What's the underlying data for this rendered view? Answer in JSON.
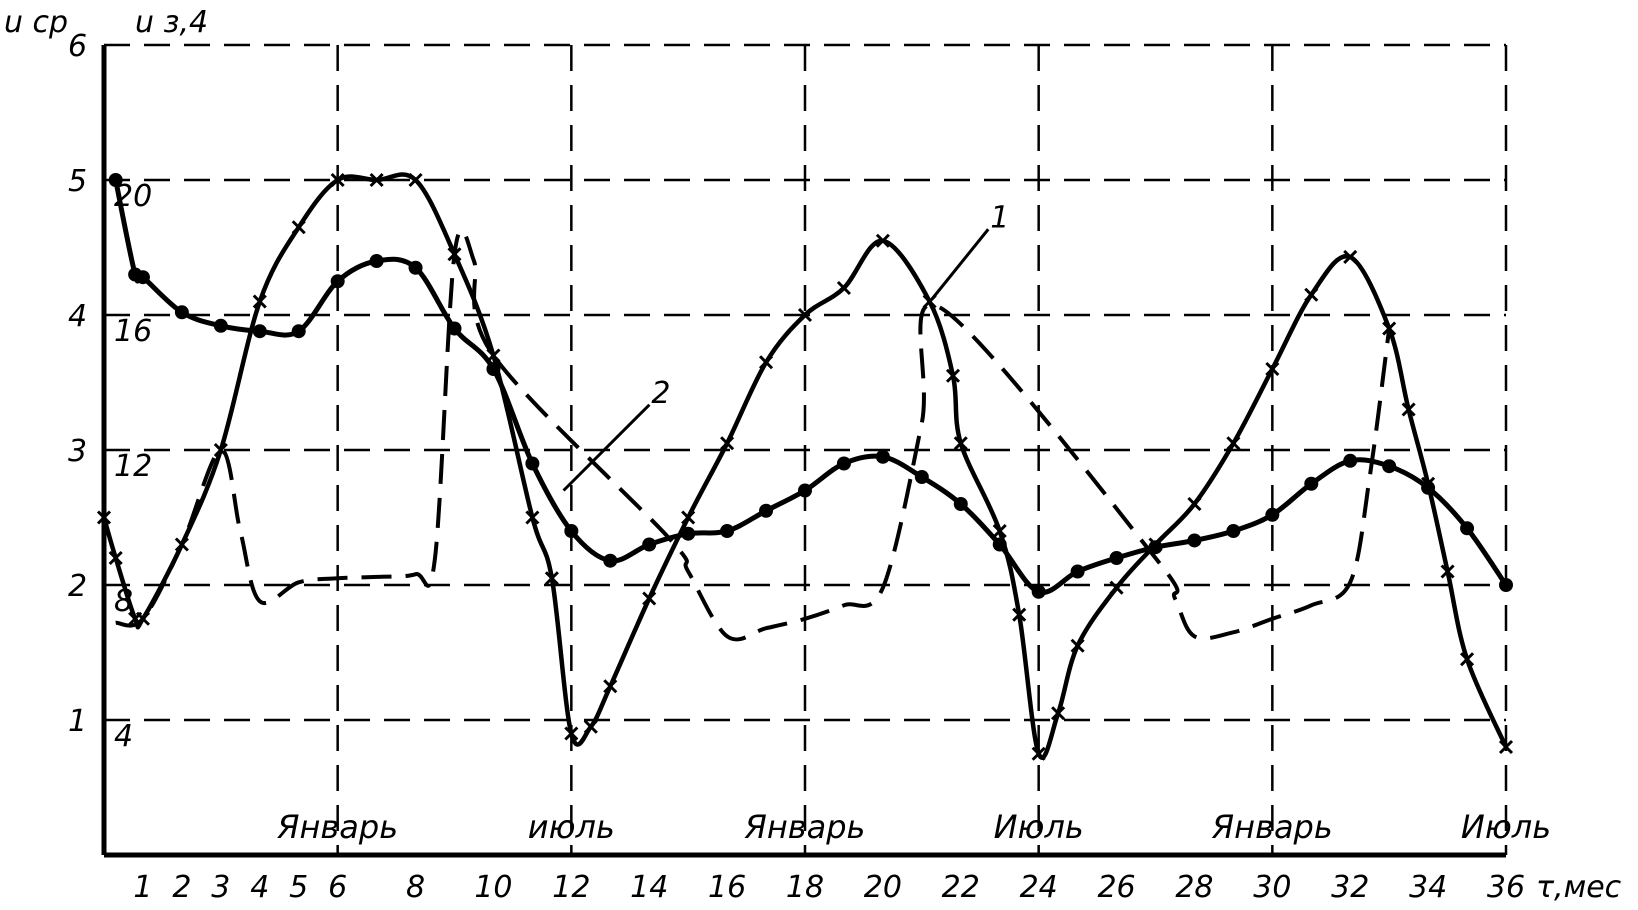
{
  "chart_data": {
    "type": "line",
    "y_axis_label": "u ср",
    "y2_axis_label": "u з,4",
    "x_axis_label": "τ,мес",
    "xlim": [
      0,
      36
    ],
    "ylim": [
      0,
      6
    ],
    "y_ticks": [
      "1",
      "2",
      "3",
      "4",
      "5",
      "6"
    ],
    "y2_ticks": [
      "4",
      "8",
      "12",
      "16",
      "20"
    ],
    "x_ticks": [
      "1",
      "2",
      "3",
      "4",
      "5",
      "6",
      "8",
      "10",
      "12",
      "14",
      "16",
      "18",
      "20",
      "22",
      "24",
      "26",
      "28",
      "30",
      "32",
      "34",
      "36"
    ],
    "month_labels": [
      {
        "text": "Январь",
        "x": 6
      },
      {
        "text": "июль",
        "x": 12
      },
      {
        "text": "Январь",
        "x": 18
      },
      {
        "text": "Июль",
        "x": 24
      },
      {
        "text": "Январь",
        "x": 30
      },
      {
        "text": "Июль",
        "x": 36
      }
    ],
    "grid": true,
    "series": [
      {
        "name": "1",
        "style": "solid-x",
        "values": [
          [
            0,
            2.5
          ],
          [
            0.3,
            2.2
          ],
          [
            0.8,
            1.75
          ],
          [
            1,
            1.75
          ],
          [
            2,
            2.3
          ],
          [
            3,
            3.0
          ],
          [
            4,
            4.1
          ],
          [
            5,
            4.65
          ],
          [
            6,
            5.0
          ],
          [
            7,
            5.0
          ],
          [
            8,
            5.0
          ],
          [
            9,
            4.45
          ],
          [
            10,
            3.7
          ],
          [
            11,
            2.5
          ],
          [
            11.5,
            2.05
          ],
          [
            12,
            0.9
          ],
          [
            12.5,
            0.95
          ],
          [
            13,
            1.25
          ],
          [
            14,
            1.9
          ],
          [
            15,
            2.5
          ],
          [
            16,
            3.05
          ],
          [
            17,
            3.65
          ],
          [
            18,
            4.0
          ],
          [
            19,
            4.2
          ],
          [
            20,
            4.55
          ],
          [
            21.2,
            4.1
          ],
          [
            21.8,
            3.55
          ],
          [
            22,
            3.05
          ],
          [
            23,
            2.4
          ],
          [
            23.5,
            1.78
          ],
          [
            24,
            0.75
          ],
          [
            24.5,
            1.05
          ],
          [
            25,
            1.55
          ],
          [
            26,
            1.98
          ],
          [
            27,
            2.3
          ],
          [
            28,
            2.6
          ],
          [
            29,
            3.05
          ],
          [
            30,
            3.6
          ],
          [
            31,
            4.15
          ],
          [
            32,
            4.43
          ],
          [
            33,
            3.9
          ],
          [
            33.5,
            3.3
          ],
          [
            34,
            2.75
          ],
          [
            34.5,
            2.1
          ],
          [
            35,
            1.45
          ],
          [
            36,
            0.8
          ]
        ]
      },
      {
        "name": "2",
        "style": "solid-dot",
        "values": [
          [
            0.3,
            5.0
          ],
          [
            0.8,
            4.3
          ],
          [
            1,
            4.28
          ],
          [
            2,
            4.02
          ],
          [
            3,
            3.92
          ],
          [
            4,
            3.88
          ],
          [
            5,
            3.88
          ],
          [
            6,
            4.25
          ],
          [
            7,
            4.4
          ],
          [
            8,
            4.35
          ],
          [
            9,
            3.9
          ],
          [
            10,
            3.6
          ],
          [
            11,
            2.9
          ],
          [
            12,
            2.4
          ],
          [
            13,
            2.18
          ],
          [
            14,
            2.3
          ],
          [
            15,
            2.38
          ],
          [
            16,
            2.4
          ],
          [
            17,
            2.55
          ],
          [
            18,
            2.7
          ],
          [
            19,
            2.9
          ],
          [
            20,
            2.95
          ],
          [
            21,
            2.8
          ],
          [
            22,
            2.6
          ],
          [
            23,
            2.3
          ],
          [
            24,
            1.95
          ],
          [
            25,
            2.1
          ],
          [
            26,
            2.2
          ],
          [
            27,
            2.28
          ],
          [
            28,
            2.33
          ],
          [
            29,
            2.4
          ],
          [
            30,
            2.52
          ],
          [
            31,
            2.75
          ],
          [
            32,
            2.92
          ],
          [
            33,
            2.88
          ],
          [
            34,
            2.72
          ],
          [
            35,
            2.42
          ],
          [
            36,
            2.0
          ]
        ]
      },
      {
        "name": "",
        "style": "dashed-x",
        "values": [
          [
            0.3,
            1.72
          ],
          [
            1,
            1.75
          ],
          [
            2,
            2.3
          ],
          [
            3,
            3.0
          ],
          [
            3.5,
            2.4
          ],
          [
            4,
            1.88
          ],
          [
            5,
            2.02
          ],
          [
            6,
            2.05
          ],
          [
            7,
            2.06
          ],
          [
            8,
            2.08
          ],
          [
            8.5,
            2.2
          ],
          [
            9,
            4.45
          ],
          [
            9.5,
            4.4
          ],
          [
            10,
            3.7
          ],
          [
            14.5,
            2.35
          ],
          [
            15,
            2.1
          ],
          [
            16,
            1.62
          ],
          [
            17,
            1.68
          ],
          [
            18,
            1.75
          ],
          [
            19,
            1.85
          ],
          [
            20,
            1.98
          ],
          [
            21,
            3.2
          ],
          [
            21.5,
            4.05
          ],
          [
            27,
            2.2
          ],
          [
            27.5,
            1.9
          ],
          [
            28,
            1.62
          ],
          [
            29,
            1.65
          ],
          [
            30,
            1.75
          ],
          [
            31,
            1.85
          ],
          [
            32,
            2.02
          ],
          [
            32.5,
            2.8
          ],
          [
            33,
            3.9
          ]
        ]
      }
    ],
    "annotations": [
      {
        "text": "1",
        "x": 22.5,
        "y": 4.65
      },
      {
        "text": "2",
        "x": 13.8,
        "y": 3.35
      }
    ]
  }
}
